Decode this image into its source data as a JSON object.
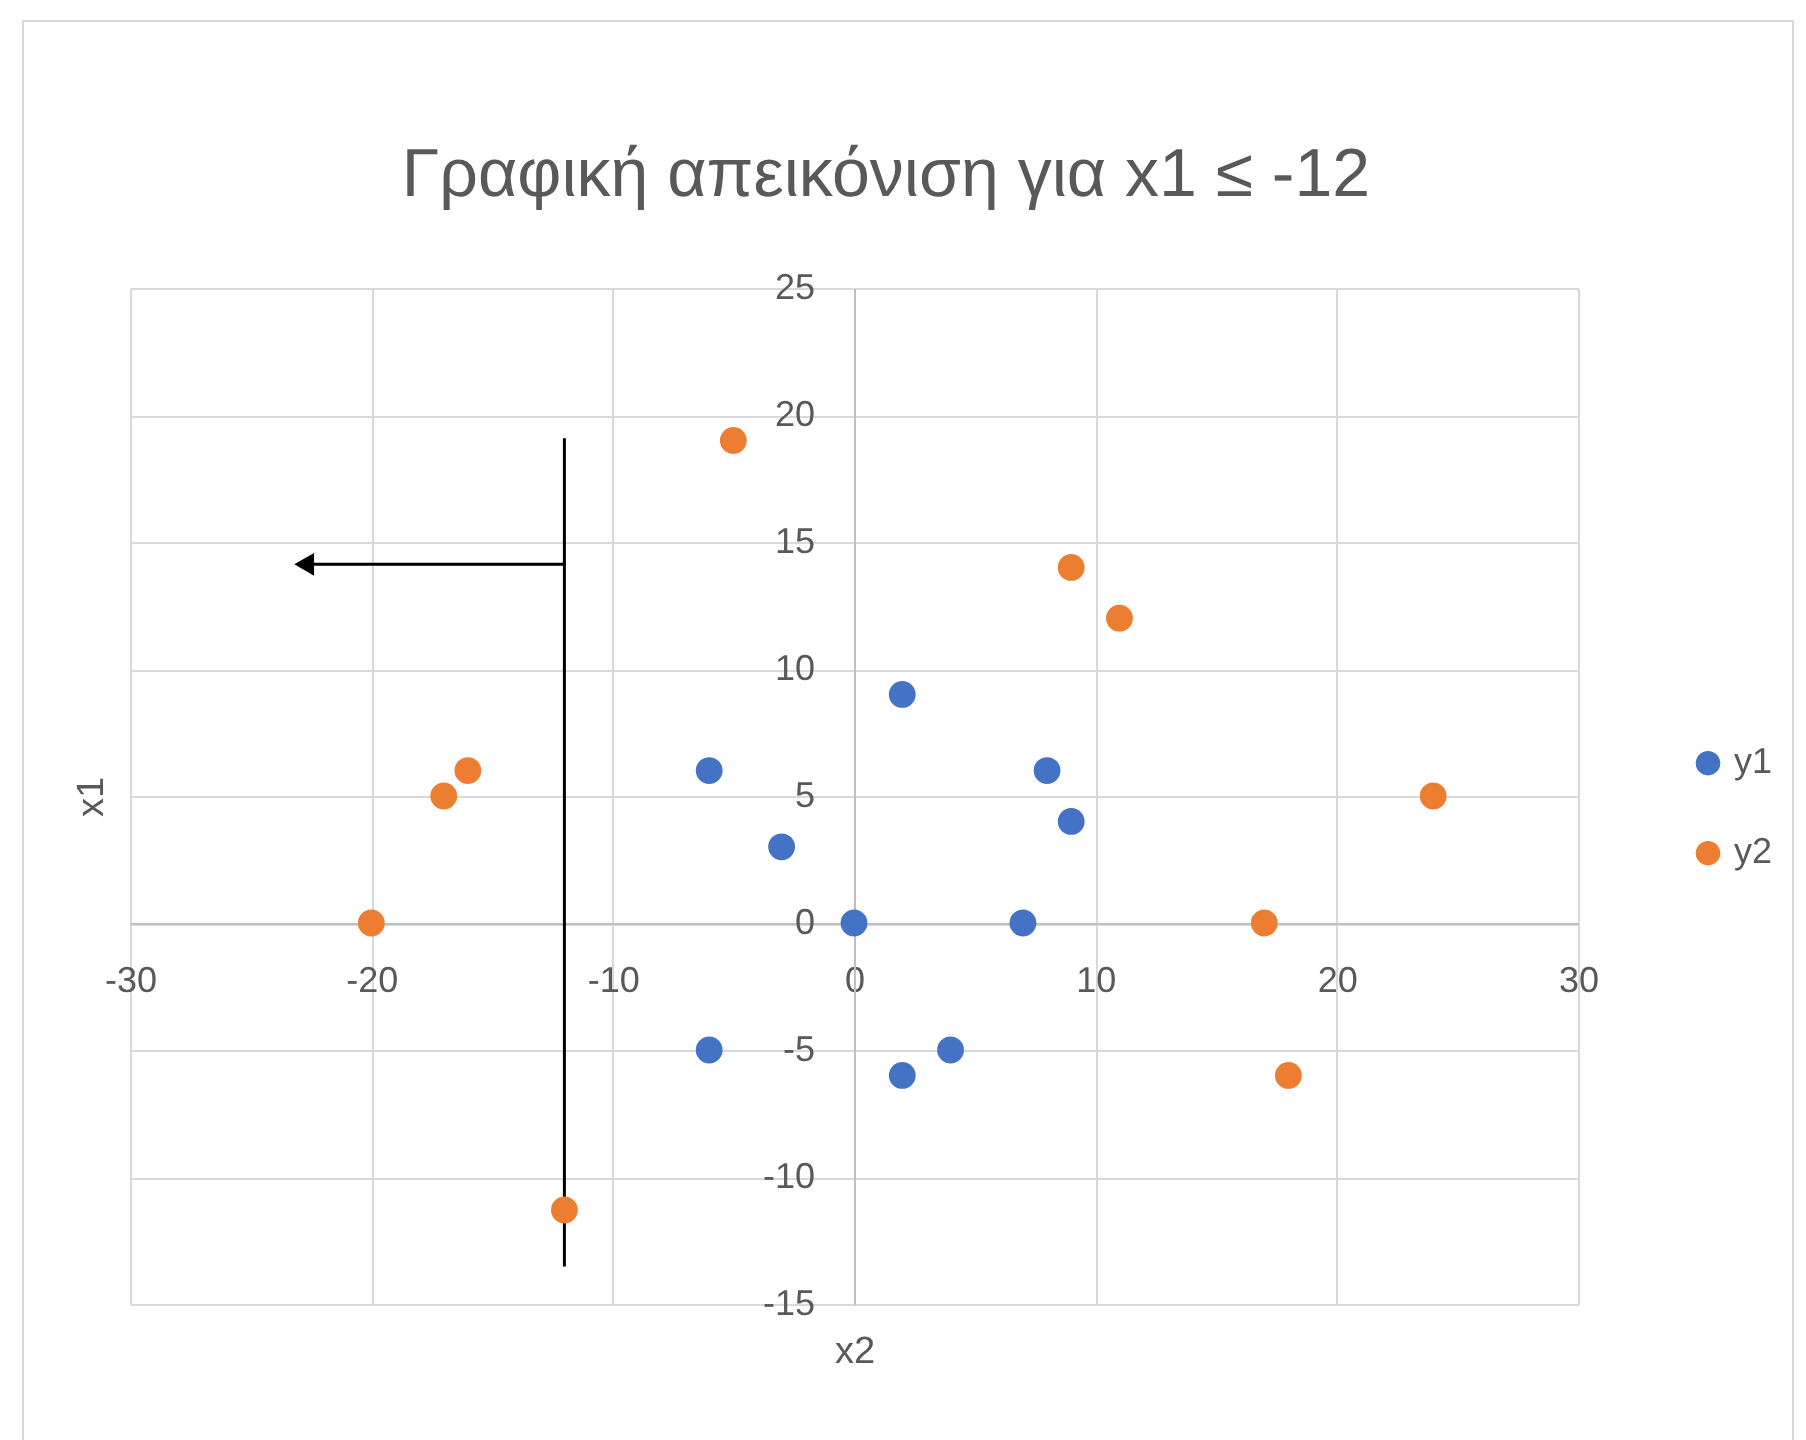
{
  "chart_data": {
    "type": "scatter",
    "title": "Γραφική απεικόνιση για x1 ≤ -12",
    "xlabel": "x2",
    "ylabel": "x1",
    "series": [
      {
        "name": "y1",
        "color": "#4472c4",
        "x": [
          -6,
          -3,
          0,
          2,
          8,
          9,
          7,
          -6,
          2,
          4
        ],
        "values": [
          6,
          3,
          0,
          9,
          6,
          4,
          0,
          -5,
          -6,
          -5
        ]
      },
      {
        "name": "y2",
        "color": "#ed7d31",
        "x": [
          -5,
          9,
          11,
          24,
          17,
          18,
          -16,
          -17,
          -20,
          -12
        ],
        "values": [
          19,
          14,
          12,
          5,
          0,
          -6,
          6,
          5,
          0,
          -11.3
        ]
      }
    ],
    "xlim": [
      -30,
      30
    ],
    "xticks": [
      -30,
      -20,
      -10,
      0,
      10,
      20,
      30
    ],
    "ylim": [
      -15,
      25
    ],
    "yticks": [
      -15,
      -10,
      -5,
      0,
      5,
      10,
      15,
      20,
      25
    ],
    "grid": true,
    "legend": "right",
    "marker": "circle",
    "ref_lines": [
      {
        "axis": "x",
        "value": -12,
        "color": "#000000"
      }
    ]
  }
}
